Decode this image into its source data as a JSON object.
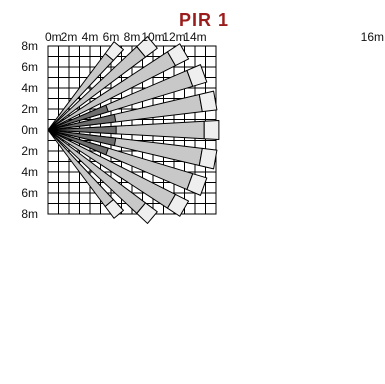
{
  "title": "PIR 1",
  "colors": {
    "title": "#9b1c1c",
    "grid": "#000000",
    "beam_light": "#c8c8c8",
    "beam_mid": "#a6a6a6",
    "beam_dark": "#6e6e6e",
    "beam_tip": "#efefef",
    "beam_outline": "#000000"
  },
  "x_axis_labels": [
    "0m",
    "2m",
    "4m",
    "6m",
    "8m",
    "10m",
    "12m",
    "14m",
    "16m"
  ],
  "y_axis_labels": [
    "8m",
    "6m",
    "4m",
    "2m",
    "0m",
    "2m",
    "4m",
    "6m",
    "8m"
  ],
  "grid_step_m": 1,
  "beams": [
    {
      "angle_deg": 50,
      "length_m": 10.5,
      "dark_to_m": 0,
      "mid_to_m": 0
    },
    {
      "angle_deg": 40,
      "length_m": 13.0,
      "dark_to_m": 0,
      "mid_to_m": 0
    },
    {
      "angle_deg": 30,
      "length_m": 15.0,
      "dark_to_m": 0,
      "mid_to_m": 0
    },
    {
      "angle_deg": 20,
      "length_m": 15.8,
      "dark_to_m": 6.0,
      "mid_to_m": 0
    },
    {
      "angle_deg": 10,
      "length_m": 16.2,
      "dark_to_m": 6.5,
      "mid_to_m": 0
    },
    {
      "angle_deg": 0,
      "length_m": 16.3,
      "dark_to_m": 6.5,
      "mid_to_m": 0
    },
    {
      "angle_deg": -10,
      "length_m": 16.2,
      "dark_to_m": 6.5,
      "mid_to_m": 0
    },
    {
      "angle_deg": -20,
      "length_m": 15.8,
      "dark_to_m": 6.0,
      "mid_to_m": 0
    },
    {
      "angle_deg": -30,
      "length_m": 15.0,
      "dark_to_m": 0,
      "mid_to_m": 0
    },
    {
      "angle_deg": -40,
      "length_m": 13.0,
      "dark_to_m": 0,
      "mid_to_m": 0
    },
    {
      "angle_deg": -50,
      "length_m": 10.5,
      "dark_to_m": 0,
      "mid_to_m": 0
    }
  ]
}
